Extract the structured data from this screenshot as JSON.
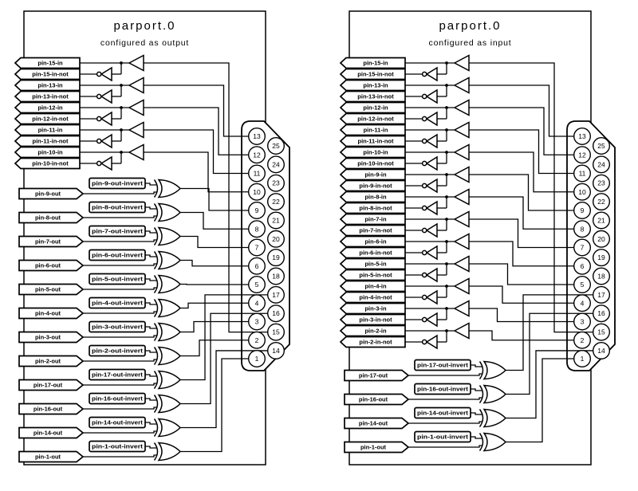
{
  "colors": {
    "line": "#000000",
    "background": "#ffffff"
  },
  "diagrams": [
    {
      "id": "output",
      "title": "parport.0",
      "subtitle": "configured as output",
      "in_rows": [
        {
          "pin": "15",
          "label": "pin-15-in",
          "not_label": "pin-15-in-not"
        },
        {
          "pin": "13",
          "label": "pin-13-in",
          "not_label": "pin-13-in-not"
        },
        {
          "pin": "12",
          "label": "pin-12-in",
          "not_label": "pin-12-in-not"
        },
        {
          "pin": "11",
          "label": "pin-11-in",
          "not_label": "pin-11-in-not"
        },
        {
          "pin": "10",
          "label": "pin-10-in",
          "not_label": "pin-10-in-not"
        }
      ],
      "out_rows": [
        {
          "pin": "9",
          "label": "pin-9-out",
          "invert_label": "pin-9-out-invert"
        },
        {
          "pin": "8",
          "label": "pin-8-out",
          "invert_label": "pin-8-out-invert"
        },
        {
          "pin": "7",
          "label": "pin-7-out",
          "invert_label": "pin-7-out-invert"
        },
        {
          "pin": "6",
          "label": "pin-6-out",
          "invert_label": "pin-6-out-invert"
        },
        {
          "pin": "5",
          "label": "pin-5-out",
          "invert_label": "pin-5-out-invert"
        },
        {
          "pin": "4",
          "label": "pin-4-out",
          "invert_label": "pin-4-out-invert"
        },
        {
          "pin": "3",
          "label": "pin-3-out",
          "invert_label": "pin-3-out-invert"
        },
        {
          "pin": "2",
          "label": "pin-2-out",
          "invert_label": "pin-2-out-invert"
        },
        {
          "pin": "17",
          "label": "pin-17-out",
          "invert_label": "pin-17-out-invert"
        },
        {
          "pin": "16",
          "label": "pin-16-out",
          "invert_label": "pin-16-out-invert"
        },
        {
          "pin": "14",
          "label": "pin-14-out",
          "invert_label": "pin-14-out-invert"
        },
        {
          "pin": "1",
          "label": "pin-1-out",
          "invert_label": "pin-1-out-invert"
        }
      ]
    },
    {
      "id": "input",
      "title": "parport.0",
      "subtitle": "configured as input",
      "in_rows": [
        {
          "pin": "15",
          "label": "pin-15-in",
          "not_label": "pin-15-in-not"
        },
        {
          "pin": "13",
          "label": "pin-13-in",
          "not_label": "pin-13-in-not"
        },
        {
          "pin": "12",
          "label": "pin-12-in",
          "not_label": "pin-12-in-not"
        },
        {
          "pin": "11",
          "label": "pin-11-in",
          "not_label": "pin-11-in-not"
        },
        {
          "pin": "10",
          "label": "pin-10-in",
          "not_label": "pin-10-in-not"
        },
        {
          "pin": "9",
          "label": "pin-9-in",
          "not_label": "pin-9-in-not"
        },
        {
          "pin": "8",
          "label": "pin-8-in",
          "not_label": "pin-8-in-not"
        },
        {
          "pin": "7",
          "label": "pin-7-in",
          "not_label": "pin-7-in-not"
        },
        {
          "pin": "6",
          "label": "pin-6-in",
          "not_label": "pin-6-in-not"
        },
        {
          "pin": "5",
          "label": "pin-5-in",
          "not_label": "pin-5-in-not"
        },
        {
          "pin": "4",
          "label": "pin-4-in",
          "not_label": "pin-4-in-not"
        },
        {
          "pin": "3",
          "label": "pin-3-in",
          "not_label": "pin-3-in-not"
        },
        {
          "pin": "2",
          "label": "pin-2-in",
          "not_label": "pin-2-in-not"
        }
      ],
      "out_rows": [
        {
          "pin": "17",
          "label": "pin-17-out",
          "invert_label": "pin-17-out-invert"
        },
        {
          "pin": "16",
          "label": "pin-16-out",
          "invert_label": "pin-16-out-invert"
        },
        {
          "pin": "14",
          "label": "pin-14-out",
          "invert_label": "pin-14-out-invert"
        },
        {
          "pin": "1",
          "label": "pin-1-out",
          "invert_label": "pin-1-out-invert"
        }
      ]
    }
  ],
  "connector": {
    "left_column_pins": [
      "13",
      "12",
      "11",
      "10",
      "9",
      "8",
      "7",
      "6",
      "5",
      "4",
      "3",
      "2",
      "1"
    ],
    "right_column_pins": [
      "25",
      "24",
      "23",
      "22",
      "21",
      "20",
      "19",
      "18",
      "17",
      "16",
      "15",
      "14"
    ]
  }
}
